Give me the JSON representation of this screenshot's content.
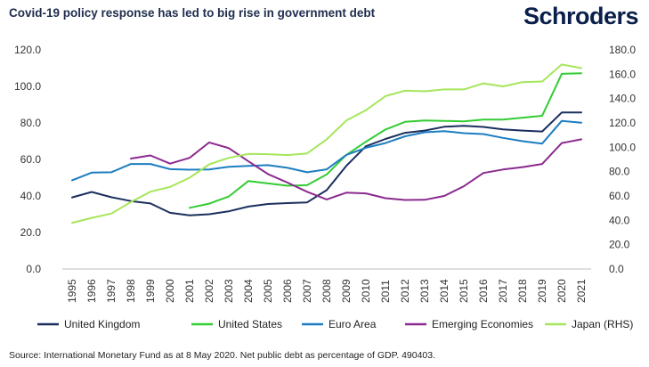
{
  "header": {
    "title": "Covid-19 policy response has led to big rise in government debt",
    "brand": "Schroders"
  },
  "source": "Source: International Monetary Fund as at 8 May 2020. Net public debt as percentage of GDP. 490403.",
  "chart_data": {
    "type": "line",
    "title": "Covid-19 policy response has led to big rise in government debt",
    "x": [
      "1995",
      "1996",
      "1997",
      "1998",
      "1999",
      "2000",
      "2001",
      "2002",
      "2003",
      "2004",
      "2005",
      "2006",
      "2007",
      "2008",
      "2009",
      "2010",
      "2011",
      "2012",
      "2013",
      "2014",
      "2015",
      "2016",
      "2017",
      "2018",
      "2019",
      "2020",
      "2021"
    ],
    "y_left": {
      "ticks": [
        "0.0",
        "20.0",
        "40.0",
        "60.0",
        "80.0",
        "100.0",
        "120.0"
      ],
      "range": [
        0,
        120
      ]
    },
    "y_right": {
      "ticks": [
        "0.0",
        "20.0",
        "40.0",
        "60.0",
        "80.0",
        "100.0",
        "120.0",
        "140.0",
        "160.0",
        "180.0"
      ],
      "range": [
        0,
        180
      ]
    },
    "grid": false,
    "legend_position": "bottom",
    "series": [
      {
        "name": "United Kingdom",
        "axis": "left",
        "color": "#1b2f5e",
        "values": [
          39.2,
          42.2,
          39.3,
          37.2,
          35.9,
          30.8,
          29.4,
          30.0,
          31.6,
          34.2,
          35.6,
          36.1,
          36.5,
          43.2,
          56.5,
          67.2,
          71.2,
          74.6,
          75.8,
          77.9,
          78.4,
          77.8,
          76.5,
          75.8,
          75.3,
          85.7,
          85.7
        ]
      },
      {
        "name": "United States",
        "axis": "left",
        "color": "#33cc33",
        "values": [
          null,
          null,
          null,
          null,
          null,
          null,
          33.5,
          35.8,
          39.7,
          48.2,
          46.9,
          45.6,
          45.9,
          51.8,
          62.5,
          69.7,
          76.4,
          80.6,
          81.3,
          81.1,
          80.9,
          81.8,
          81.8,
          82.9,
          83.9,
          106.9,
          107.2
        ]
      },
      {
        "name": "Euro Area",
        "axis": "left",
        "color": "#1c7ec1",
        "values": [
          48.6,
          52.8,
          53.0,
          57.5,
          57.5,
          54.7,
          54.4,
          54.5,
          56.0,
          56.5,
          56.9,
          55.4,
          53.0,
          54.6,
          62.5,
          66.4,
          69.0,
          72.7,
          74.9,
          75.5,
          74.4,
          73.9,
          71.8,
          70.0,
          68.7,
          81.1,
          80.1
        ]
      },
      {
        "name": "Emerging Economies",
        "axis": "left",
        "color": "#8b2a8f",
        "values": [
          null,
          null,
          null,
          60.5,
          62.2,
          57.7,
          60.9,
          69.3,
          66.2,
          59.0,
          52.0,
          47.3,
          42.3,
          38.1,
          41.8,
          41.4,
          38.8,
          37.8,
          37.9,
          40.0,
          45.3,
          52.6,
          54.5,
          55.8,
          57.5,
          69.0,
          71.0
        ]
      },
      {
        "name": "Japan (RHS)",
        "axis": "right",
        "color": "#a6e65a",
        "values": [
          38.0,
          42.0,
          45.5,
          55.0,
          63.5,
          67.5,
          75.0,
          86.0,
          91.3,
          94.5,
          94.3,
          93.6,
          95.0,
          106.5,
          122.0,
          130.5,
          142.0,
          146.5,
          146.0,
          147.5,
          147.5,
          152.5,
          150.0,
          153.5,
          154.0,
          168.0,
          165.0
        ]
      }
    ]
  }
}
